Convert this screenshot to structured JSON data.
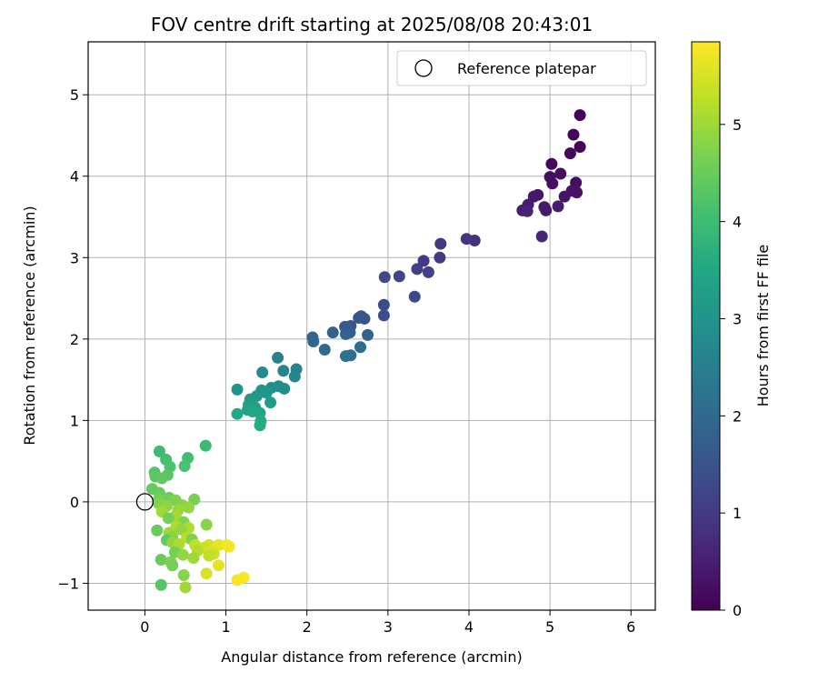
{
  "chart_data": {
    "type": "scatter",
    "title": "FOV centre drift starting at 2025/08/08 20:43:01",
    "xlabel": "Angular distance from reference (arcmin)",
    "ylabel": "Rotation from reference (arcmin)",
    "xlim": [
      -0.7,
      6.3
    ],
    "ylim": [
      -1.33,
      5.65
    ],
    "xticks": [
      0,
      1,
      2,
      3,
      4,
      5,
      6
    ],
    "xtick_labels": [
      "0",
      "1",
      "2",
      "3",
      "4",
      "5",
      "6"
    ],
    "yticks": [
      -1,
      0,
      1,
      2,
      3,
      4,
      5
    ],
    "ytick_labels": [
      "−1",
      "0",
      "1",
      "2",
      "3",
      "4",
      "5"
    ],
    "grid": true,
    "legend": {
      "position": "top-right",
      "entries": [
        {
          "label": "Reference platepar",
          "marker": "open-circle"
        }
      ]
    },
    "reference_point": {
      "x": 0,
      "y": 0
    },
    "colorbar": {
      "label": "Hours from first FF file",
      "colormap": "viridis",
      "range": [
        0,
        5.85
      ],
      "ticks": [
        0,
        1,
        2,
        3,
        4,
        5
      ],
      "tick_labels": [
        "0",
        "1",
        "2",
        "3",
        "4",
        "5"
      ]
    },
    "points": [
      [
        5.37,
        4.75,
        0.05
      ],
      [
        5.29,
        4.51,
        0.08
      ],
      [
        5.37,
        4.36,
        0.1
      ],
      [
        5.25,
        4.28,
        0.12
      ],
      [
        5.02,
        4.15,
        0.15
      ],
      [
        5.13,
        4.03,
        0.18
      ],
      [
        5.0,
        3.99,
        0.2
      ],
      [
        5.32,
        3.92,
        0.22
      ],
      [
        5.03,
        3.91,
        0.25
      ],
      [
        5.27,
        3.82,
        0.28
      ],
      [
        5.33,
        3.8,
        0.3
      ],
      [
        5.18,
        3.75,
        0.33
      ],
      [
        4.85,
        3.77,
        0.35
      ],
      [
        4.8,
        3.75,
        0.38
      ],
      [
        4.93,
        3.62,
        0.4
      ],
      [
        4.95,
        3.58,
        0.43
      ],
      [
        5.1,
        3.63,
        0.45
      ],
      [
        4.73,
        3.65,
        0.48
      ],
      [
        4.66,
        3.58,
        0.5
      ],
      [
        4.72,
        3.57,
        0.55
      ],
      [
        4.9,
        3.26,
        0.6
      ],
      [
        4.07,
        3.21,
        0.85
      ],
      [
        3.97,
        3.23,
        0.9
      ],
      [
        3.65,
        3.17,
        0.95
      ],
      [
        3.64,
        3.0,
        1.0
      ],
      [
        3.44,
        2.96,
        1.05
      ],
      [
        3.36,
        2.86,
        1.1
      ],
      [
        3.5,
        2.82,
        1.15
      ],
      [
        3.14,
        2.77,
        1.2
      ],
      [
        2.96,
        2.76,
        1.25
      ],
      [
        3.33,
        2.52,
        1.3
      ],
      [
        2.95,
        2.42,
        1.35
      ],
      [
        2.95,
        2.29,
        1.4
      ],
      [
        2.67,
        2.28,
        1.45
      ],
      [
        2.71,
        2.25,
        1.5
      ],
      [
        2.64,
        2.26,
        1.55
      ],
      [
        2.54,
        2.16,
        1.6
      ],
      [
        2.47,
        2.15,
        1.65
      ],
      [
        2.53,
        2.08,
        1.7
      ],
      [
        2.32,
        2.08,
        1.75
      ],
      [
        2.48,
        2.06,
        1.8
      ],
      [
        2.75,
        2.05,
        1.85
      ],
      [
        2.07,
        2.02,
        1.9
      ],
      [
        2.08,
        1.97,
        1.95
      ],
      [
        2.22,
        1.87,
        2.0
      ],
      [
        2.66,
        1.9,
        2.05
      ],
      [
        2.54,
        1.8,
        2.1
      ],
      [
        2.48,
        1.79,
        2.15
      ],
      [
        1.64,
        1.77,
        2.55
      ],
      [
        1.87,
        1.63,
        2.6
      ],
      [
        1.71,
        1.61,
        2.65
      ],
      [
        1.85,
        1.54,
        2.7
      ],
      [
        1.45,
        1.59,
        2.75
      ],
      [
        1.65,
        1.42,
        2.8
      ],
      [
        1.72,
        1.39,
        2.85
      ],
      [
        1.56,
        1.4,
        2.9
      ],
      [
        1.14,
        1.38,
        2.95
      ],
      [
        1.44,
        1.37,
        3.0
      ],
      [
        1.5,
        1.34,
        3.05
      ],
      [
        1.38,
        1.3,
        3.1
      ],
      [
        1.3,
        1.26,
        3.15
      ],
      [
        1.55,
        1.22,
        3.2
      ],
      [
        1.28,
        1.19,
        3.25
      ],
      [
        1.36,
        1.16,
        3.3
      ],
      [
        1.27,
        1.13,
        3.35
      ],
      [
        1.33,
        1.11,
        3.4
      ],
      [
        1.42,
        1.09,
        3.45
      ],
      [
        1.14,
        1.08,
        3.5
      ],
      [
        1.43,
        0.99,
        3.55
      ],
      [
        1.42,
        0.94,
        3.6
      ],
      [
        0.75,
        0.69,
        3.95
      ],
      [
        0.18,
        0.62,
        4.0
      ],
      [
        0.53,
        0.54,
        4.05
      ],
      [
        0.26,
        0.52,
        4.1
      ],
      [
        0.49,
        0.44,
        4.15
      ],
      [
        0.31,
        0.43,
        4.2
      ],
      [
        0.12,
        0.36,
        4.25
      ],
      [
        0.28,
        0.33,
        4.3
      ],
      [
        0.13,
        0.31,
        4.35
      ],
      [
        0.21,
        0.29,
        4.4
      ],
      [
        0.09,
        0.16,
        4.45
      ],
      [
        0.18,
        0.11,
        4.5
      ],
      [
        0.3,
        0.05,
        4.55
      ],
      [
        0.17,
        0.03,
        4.6
      ],
      [
        0.61,
        0.03,
        4.65
      ],
      [
        0.38,
        0.02,
        4.7
      ],
      [
        0.17,
        -0.02,
        4.75
      ],
      [
        0.46,
        -0.04,
        4.8
      ],
      [
        0.27,
        -0.05,
        4.85
      ],
      [
        0.54,
        -0.07,
        4.9
      ],
      [
        0.41,
        -0.1,
        4.95
      ],
      [
        0.21,
        -0.12,
        5.0
      ],
      [
        0.38,
        -0.17,
        5.05
      ],
      [
        0.29,
        -0.2,
        4.6
      ],
      [
        0.48,
        -0.25,
        4.7
      ],
      [
        0.76,
        -0.28,
        4.8
      ],
      [
        0.39,
        -0.3,
        5.1
      ],
      [
        0.54,
        -0.32,
        5.15
      ],
      [
        0.15,
        -0.35,
        4.5
      ],
      [
        0.45,
        -0.34,
        4.9
      ],
      [
        0.3,
        -0.38,
        5.0
      ],
      [
        0.34,
        -0.43,
        4.8
      ],
      [
        0.52,
        -0.44,
        5.2
      ],
      [
        0.58,
        -0.46,
        4.7
      ],
      [
        0.27,
        -0.47,
        4.4
      ],
      [
        0.34,
        -0.5,
        4.9
      ],
      [
        0.42,
        -0.52,
        5.1
      ],
      [
        0.62,
        -0.53,
        5.3
      ],
      [
        0.79,
        -0.53,
        5.5
      ],
      [
        0.91,
        -0.53,
        5.6
      ],
      [
        1.01,
        -0.53,
        5.7
      ],
      [
        1.04,
        -0.55,
        5.75
      ],
      [
        0.74,
        -0.56,
        5.4
      ],
      [
        0.8,
        -0.6,
        5.5
      ],
      [
        0.65,
        -0.6,
        5.2
      ],
      [
        0.37,
        -0.62,
        4.6
      ],
      [
        0.85,
        -0.64,
        5.4
      ],
      [
        0.47,
        -0.65,
        4.9
      ],
      [
        0.79,
        -0.66,
        5.3
      ],
      [
        0.6,
        -0.69,
        5.0
      ],
      [
        0.2,
        -0.71,
        4.5
      ],
      [
        0.32,
        -0.74,
        4.7
      ],
      [
        0.34,
        -0.78,
        4.6
      ],
      [
        0.91,
        -0.78,
        5.6
      ],
      [
        0.76,
        -0.88,
        5.5
      ],
      [
        0.48,
        -0.9,
        4.8
      ],
      [
        1.22,
        -0.93,
        5.85
      ],
      [
        1.14,
        -0.96,
        5.8
      ],
      [
        0.2,
        -1.02,
        4.3
      ],
      [
        0.5,
        -1.05,
        5.0
      ]
    ]
  }
}
